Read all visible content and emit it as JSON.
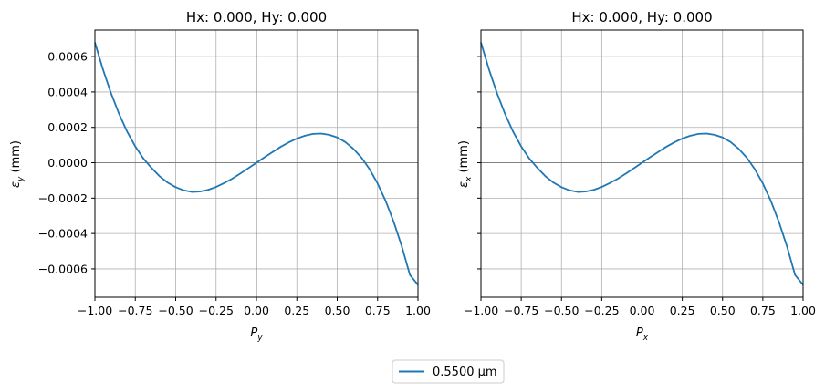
{
  "legend": {
    "label": "0.5500 µm",
    "color": "#1f77b4",
    "placement": "lower-center"
  },
  "chart_data": [
    {
      "type": "line",
      "title": "Hx: 0.000, Hy: 0.000",
      "xlabel": {
        "main": "P",
        "sub": "y"
      },
      "ylabel": {
        "main": "ε",
        "sub": "y",
        "unit": " (mm)"
      },
      "xlim": [
        -1.0,
        1.0
      ],
      "ylim": [
        -0.00076,
        0.00075
      ],
      "xticks": [
        -1.0,
        -0.75,
        -0.5,
        -0.25,
        0.0,
        0.25,
        0.5,
        0.75,
        1.0
      ],
      "xtick_labels": [
        "−1.00",
        "−0.75",
        "−0.50",
        "−0.25",
        "0.00",
        "0.25",
        "0.50",
        "0.75",
        "1.00"
      ],
      "yticks": [
        -0.0006,
        -0.0004,
        -0.0002,
        0.0,
        0.0002,
        0.0004,
        0.0006
      ],
      "ytick_labels": [
        "−0.0006",
        "−0.0004",
        "−0.0002",
        "0.0000",
        "0.0002",
        "0.0004",
        "0.0006"
      ],
      "show_ytick_labels": true,
      "grid": true,
      "series": [
        {
          "name": "0.5500 µm",
          "color": "#1f77b4",
          "x": [
            -1.0,
            -0.95,
            -0.9,
            -0.85,
            -0.8,
            -0.75,
            -0.7,
            -0.65,
            -0.6,
            -0.55,
            -0.5,
            -0.45,
            -0.4,
            -0.35,
            -0.3,
            -0.25,
            -0.2,
            -0.15,
            -0.1,
            -0.05,
            0.0,
            0.05,
            0.1,
            0.15,
            0.2,
            0.25,
            0.3,
            0.35,
            0.4,
            0.45,
            0.5,
            0.55,
            0.6,
            0.65,
            0.7,
            0.75,
            0.8,
            0.85,
            0.9,
            0.95,
            1.0
          ],
          "y": [
            0.00068,
            0.000527,
            0.000392,
            0.000275,
            0.000175,
            9.2e-05,
            2.4e-05,
            -2.9e-05,
            -7.6e-05,
            -0.000112,
            -0.000138,
            -0.000156,
            -0.000165,
            -0.000163,
            -0.000153,
            -0.000137,
            -0.000115,
            -9e-05,
            -6.1e-05,
            -3.1e-05,
            0.0,
            3.1e-05,
            6.1e-05,
            9e-05,
            0.000115,
            0.000137,
            0.000153,
            0.000163,
            0.000165,
            0.000158,
            0.000143,
            0.000117,
            7.9e-05,
            2.9e-05,
            -3.6e-05,
            -0.000117,
            -0.000216,
            -0.000335,
            -0.000473,
            -0.000634,
            -0.00069
          ]
        }
      ]
    },
    {
      "type": "line",
      "title": "Hx: 0.000, Hy: 0.000",
      "xlabel": {
        "main": "P",
        "sub": "x"
      },
      "ylabel": {
        "main": "ε",
        "sub": "x",
        "unit": " (mm)"
      },
      "xlim": [
        -1.0,
        1.0
      ],
      "ylim": [
        -0.00076,
        0.00075
      ],
      "xticks": [
        -1.0,
        -0.75,
        -0.5,
        -0.25,
        0.0,
        0.25,
        0.5,
        0.75,
        1.0
      ],
      "xtick_labels": [
        "−1.00",
        "−0.75",
        "−0.50",
        "−0.25",
        "0.00",
        "0.25",
        "0.50",
        "0.75",
        "1.00"
      ],
      "yticks": [
        -0.0006,
        -0.0004,
        -0.0002,
        0.0,
        0.0002,
        0.0004,
        0.0006
      ],
      "ytick_labels": [],
      "show_ytick_labels": false,
      "grid": true,
      "series": [
        {
          "name": "0.5500 µm",
          "color": "#1f77b4",
          "x": [
            -1.0,
            -0.95,
            -0.9,
            -0.85,
            -0.8,
            -0.75,
            -0.7,
            -0.65,
            -0.6,
            -0.55,
            -0.5,
            -0.45,
            -0.4,
            -0.35,
            -0.3,
            -0.25,
            -0.2,
            -0.15,
            -0.1,
            -0.05,
            0.0,
            0.05,
            0.1,
            0.15,
            0.2,
            0.25,
            0.3,
            0.35,
            0.4,
            0.45,
            0.5,
            0.55,
            0.6,
            0.65,
            0.7,
            0.75,
            0.8,
            0.85,
            0.9,
            0.95,
            1.0
          ],
          "y": [
            0.00068,
            0.000527,
            0.000392,
            0.000275,
            0.000175,
            9.2e-05,
            2.4e-05,
            -2.9e-05,
            -7.6e-05,
            -0.000112,
            -0.000138,
            -0.000156,
            -0.000165,
            -0.000163,
            -0.000153,
            -0.000137,
            -0.000115,
            -9e-05,
            -6.1e-05,
            -3.1e-05,
            0.0,
            3.1e-05,
            6.1e-05,
            9e-05,
            0.000115,
            0.000137,
            0.000153,
            0.000163,
            0.000165,
            0.000158,
            0.000143,
            0.000117,
            7.9e-05,
            2.9e-05,
            -3.6e-05,
            -0.000117,
            -0.000216,
            -0.000335,
            -0.000473,
            -0.000634,
            -0.00069
          ]
        }
      ]
    }
  ]
}
